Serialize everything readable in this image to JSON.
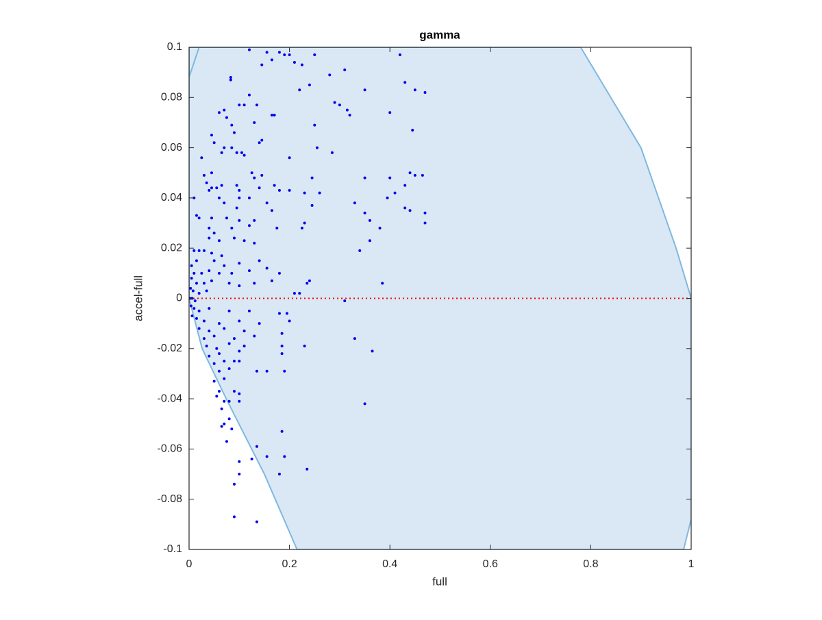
{
  "chart_data": {
    "type": "scatter",
    "title": "gamma",
    "x_label": "full",
    "y_label": "accel-full",
    "xlim": [
      0,
      1
    ],
    "ylim": [
      -0.1,
      0.1
    ],
    "xticks": [
      0,
      0.2,
      0.4,
      0.6,
      0.8,
      1
    ],
    "yticks": [
      -0.1,
      -0.08,
      -0.06,
      -0.04,
      -0.02,
      0,
      0.02,
      0.04,
      0.06,
      0.08,
      0.1
    ],
    "region": {
      "color": "#d9e8f4",
      "edge_color": "#7fb8e0",
      "x": [
        0,
        0.78,
        0.9,
        0.97,
        1,
        1,
        0.985,
        0.215,
        0.15,
        0.074,
        0.026,
        0
      ],
      "y": [
        0.1,
        0.1,
        0.06,
        0.02,
        0,
        -0.088,
        -0.1,
        -0.1,
        -0.07,
        -0.04,
        -0.02,
        0
      ]
    },
    "region_arc": {
      "x": [
        0,
        0.02
      ],
      "y": [
        0.088,
        0.1
      ]
    },
    "reference_line": {
      "y": 0,
      "color": "#ff0000"
    },
    "series": [
      {
        "color": "#0000ee",
        "x": [
          0.12,
          0.155,
          0.18,
          0.19,
          0.2,
          0.25,
          0.42,
          0.165,
          0.21,
          0.145,
          0.225,
          0.28,
          0.31,
          0.24,
          0.43,
          0.45,
          0.47,
          0.35,
          0.22,
          0.083,
          0.083,
          0.12,
          0.29,
          0.3,
          0.315,
          0.32,
          0.4,
          0.1,
          0.11,
          0.135,
          0.06,
          0.07,
          0.075,
          0.165,
          0.17,
          0.13,
          0.085,
          0.25,
          0.445,
          0.09,
          0.045,
          0.05,
          0.145,
          0.14,
          0.07,
          0.085,
          0.095,
          0.105,
          0.065,
          0.255,
          0.285,
          0.2,
          0.025,
          0.11,
          0.045,
          0.03,
          0.125,
          0.13,
          0.145,
          0.245,
          0.35,
          0.4,
          0.44,
          0.45,
          0.465,
          0.035,
          0.04,
          0.045,
          0.055,
          0.065,
          0.095,
          0.1,
          0.14,
          0.17,
          0.18,
          0.2,
          0.23,
          0.26,
          0.41,
          0.43,
          0.01,
          0.06,
          0.07,
          0.1,
          0.12,
          0.095,
          0.155,
          0.245,
          0.33,
          0.395,
          0.165,
          0.43,
          0.44,
          0.47,
          0.35,
          0.015,
          0.02,
          0.045,
          0.075,
          0.1,
          0.13,
          0.23,
          0.36,
          0.47,
          0.04,
          0.05,
          0.085,
          0.12,
          0.175,
          0.225,
          0.38,
          0.04,
          0.06,
          0.09,
          0.11,
          0.13,
          0.36,
          0.01,
          0.02,
          0.03,
          0.045,
          0.065,
          0.34,
          0.015,
          0.05,
          0.07,
          0.1,
          0.14,
          0.005,
          0.01,
          0.025,
          0.04,
          0.06,
          0.085,
          0.12,
          0.155,
          0.18,
          0.005,
          0.015,
          0.03,
          0.045,
          0.08,
          0.1,
          0.13,
          0.165,
          0.24,
          0.235,
          0.385,
          0.003,
          0.008,
          0.02,
          0.035,
          0.21,
          0.22,
          0.002,
          0.006,
          0.012,
          0.31,
          0.004,
          0.01,
          0.02,
          0.04,
          0.08,
          0.12,
          0.18,
          0.195,
          0.006,
          0.015,
          0.03,
          0.06,
          0.1,
          0.14,
          0.2,
          0.02,
          0.04,
          0.07,
          0.11,
          0.03,
          0.05,
          0.09,
          0.13,
          0.185,
          0.33,
          0.035,
          0.055,
          0.08,
          0.11,
          0.185,
          0.23,
          0.04,
          0.06,
          0.1,
          0.185,
          0.365,
          0.05,
          0.07,
          0.09,
          0.1,
          0.06,
          0.08,
          0.135,
          0.155,
          0.19,
          0.05,
          0.07,
          0.06,
          0.09,
          0.1,
          0.055,
          0.07,
          0.08,
          0.065,
          0.1,
          0.35,
          0.08,
          0.065,
          0.07,
          0.185,
          0.085,
          0.075,
          0.135,
          0.155,
          0.19,
          0.125,
          0.1,
          0.235,
          0.1,
          0.18,
          0.09,
          0.09,
          0.135
        ],
        "values": [
          0.099,
          0.098,
          0.098,
          0.097,
          0.097,
          0.097,
          0.097,
          0.095,
          0.094,
          0.093,
          0.093,
          0.089,
          0.091,
          0.085,
          0.086,
          0.083,
          0.082,
          0.083,
          0.083,
          0.088,
          0.087,
          0.081,
          0.078,
          0.077,
          0.075,
          0.073,
          0.074,
          0.077,
          0.077,
          0.077,
          0.074,
          0.075,
          0.072,
          0.073,
          0.073,
          0.07,
          0.069,
          0.069,
          0.067,
          0.066,
          0.065,
          0.062,
          0.063,
          0.062,
          0.06,
          0.06,
          0.058,
          0.058,
          0.058,
          0.06,
          0.058,
          0.056,
          0.056,
          0.057,
          0.05,
          0.049,
          0.05,
          0.048,
          0.049,
          0.048,
          0.048,
          0.048,
          0.05,
          0.049,
          0.049,
          0.046,
          0.043,
          0.044,
          0.044,
          0.045,
          0.045,
          0.043,
          0.044,
          0.045,
          0.043,
          0.043,
          0.042,
          0.042,
          0.042,
          0.045,
          0.04,
          0.04,
          0.038,
          0.04,
          0.04,
          0.036,
          0.038,
          0.037,
          0.038,
          0.04,
          0.035,
          0.036,
          0.035,
          0.034,
          0.034,
          0.033,
          0.032,
          0.032,
          0.032,
          0.031,
          0.031,
          0.03,
          0.031,
          0.03,
          0.028,
          0.026,
          0.028,
          0.029,
          0.028,
          0.028,
          0.028,
          0.024,
          0.023,
          0.024,
          0.023,
          0.022,
          0.023,
          0.019,
          0.019,
          0.019,
          0.018,
          0.017,
          0.019,
          0.015,
          0.015,
          0.013,
          0.014,
          0.015,
          0.013,
          0.01,
          0.01,
          0.011,
          0.01,
          0.01,
          0.011,
          0.012,
          0.01,
          0.008,
          0.006,
          0.006,
          0.007,
          0.006,
          0.005,
          0.006,
          0.007,
          0.007,
          0.006,
          0.006,
          0.004,
          0.003,
          0.002,
          0.003,
          0.002,
          0.002,
          0,
          0,
          -0.001,
          -0.001,
          -0.003,
          -0.004,
          -0.005,
          -0.004,
          -0.005,
          -0.005,
          -0.006,
          -0.006,
          -0.007,
          -0.008,
          -0.009,
          -0.01,
          -0.009,
          -0.01,
          -0.009,
          -0.012,
          -0.013,
          -0.012,
          -0.013,
          -0.016,
          -0.015,
          -0.016,
          -0.015,
          -0.014,
          -0.016,
          -0.019,
          -0.02,
          -0.018,
          -0.019,
          -0.019,
          -0.019,
          -0.023,
          -0.022,
          -0.021,
          -0.022,
          -0.021,
          -0.026,
          -0.025,
          -0.025,
          -0.025,
          -0.029,
          -0.028,
          -0.029,
          -0.029,
          -0.029,
          -0.033,
          -0.032,
          -0.037,
          -0.037,
          -0.038,
          -0.039,
          -0.041,
          -0.041,
          -0.044,
          -0.041,
          -0.042,
          -0.048,
          -0.051,
          -0.05,
          -0.053,
          -0.052,
          -0.057,
          -0.059,
          -0.063,
          -0.063,
          -0.064,
          -0.065,
          -0.068,
          -0.07,
          -0.07,
          -0.074,
          -0.087,
          -0.089
        ]
      }
    ]
  }
}
